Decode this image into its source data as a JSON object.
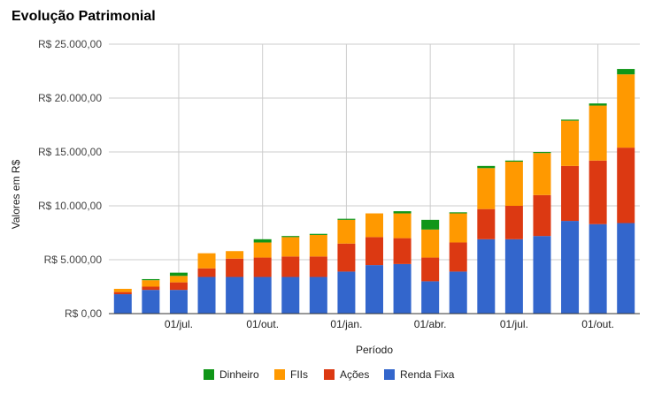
{
  "chart_data": {
    "type": "bar",
    "stacked": true,
    "title": "Evolução Patrimonial",
    "xlabel": "Período",
    "ylabel": "Valores em R$",
    "ylim": [
      0,
      25000
    ],
    "yticks": [
      {
        "value": 0,
        "label": "R$ 0,00"
      },
      {
        "value": 5000,
        "label": "R$ 5.000,00"
      },
      {
        "value": 10000,
        "label": "R$ 10.000,00"
      },
      {
        "value": 15000,
        "label": "R$ 15.000,00"
      },
      {
        "value": 20000,
        "label": "R$ 20.000,00"
      },
      {
        "value": 25000,
        "label": "R$ 25.000,00"
      }
    ],
    "xticks": [
      {
        "after_bar": 2,
        "label": "01/jul."
      },
      {
        "after_bar": 5,
        "label": "01/out."
      },
      {
        "after_bar": 8,
        "label": "01/jan."
      },
      {
        "after_bar": 11,
        "label": "01/abr."
      },
      {
        "after_bar": 14,
        "label": "01/jul."
      },
      {
        "after_bar": 17,
        "label": "01/out."
      }
    ],
    "grid": true,
    "legend_position": "bottom",
    "series": [
      {
        "name": "Renda Fixa",
        "color": "#3366cc",
        "values": [
          1800,
          2200,
          2200,
          3400,
          3400,
          3400,
          3400,
          3400,
          3900,
          4500,
          4600,
          3000,
          3900,
          6900,
          6900,
          7200,
          8600,
          8300,
          8400
        ]
      },
      {
        "name": "Ações",
        "color": "#dc3912",
        "values": [
          200,
          300,
          700,
          800,
          1700,
          1800,
          1900,
          1900,
          2600,
          2600,
          2400,
          2200,
          2700,
          2800,
          3100,
          3800,
          5100,
          5900,
          7000
        ]
      },
      {
        "name": "FIIs",
        "color": "#ff9900",
        "values": [
          300,
          600,
          600,
          1400,
          700,
          1400,
          1800,
          2000,
          2200,
          2200,
          2300,
          2600,
          2700,
          3800,
          4100,
          3900,
          4200,
          5100,
          6800
        ]
      },
      {
        "name": "Dinheiro",
        "color": "#109618",
        "values": [
          0,
          100,
          300,
          0,
          0,
          300,
          100,
          100,
          100,
          0,
          200,
          900,
          100,
          200,
          100,
          100,
          100,
          200,
          500
        ]
      }
    ]
  }
}
